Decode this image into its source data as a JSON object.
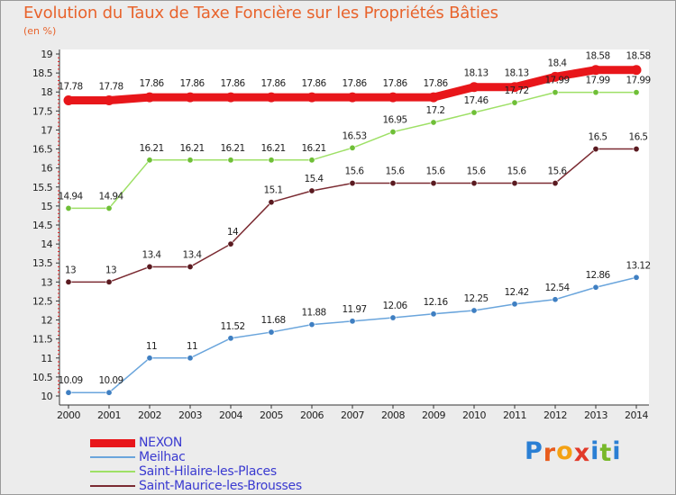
{
  "title": "Evolution du Taux de Taxe Foncière sur les Propriétés Bâties",
  "subtitle": "(en %)",
  "logo": "Proxiti",
  "chart_data": {
    "type": "line",
    "title": "Evolution du Taux de Taxe Foncière sur les Propriétés Bâties",
    "ylabel": "(en %)",
    "xlabel": "",
    "ylim": [
      10,
      19
    ],
    "yticks": [
      "10",
      "10.5",
      "11",
      "11.5",
      "12",
      "12.5",
      "13",
      "13.5",
      "14",
      "14.5",
      "15",
      "15.5",
      "16",
      "16.5",
      "17",
      "17.5",
      "18",
      "18.5",
      "19"
    ],
    "categories": [
      "2000",
      "2001",
      "2002",
      "2003",
      "2004",
      "2005",
      "2006",
      "2007",
      "2008",
      "2009",
      "2010",
      "2011",
      "2012",
      "2013",
      "2014"
    ],
    "grid": false,
    "legend": "bottom-left",
    "series": [
      {
        "name": "NEXON",
        "color": "#e8161a",
        "marker_color": "#c01010",
        "values": [
          17.78,
          17.78,
          17.86,
          17.86,
          17.86,
          17.86,
          17.86,
          17.86,
          17.86,
          17.86,
          18.13,
          18.13,
          18.4,
          18.58,
          18.58
        ],
        "labels": [
          "17.78",
          "17.78",
          "17.86",
          "17.86",
          "17.86",
          "17.86",
          "17.86",
          "17.86",
          "17.86",
          "17.86",
          "18.13",
          "18.13",
          "18.4",
          "18.58",
          "18.58"
        ]
      },
      {
        "name": "Meilhac",
        "color": "#6aa5dc",
        "marker_color": "#3f7fc2",
        "values": [
          10.09,
          10.09,
          11,
          11,
          11.52,
          11.68,
          11.88,
          11.97,
          12.06,
          12.16,
          12.25,
          12.42,
          12.54,
          12.86,
          13.12
        ],
        "labels": [
          "10.09",
          "10.09",
          "11",
          "11",
          "11.52",
          "11.68",
          "11.88",
          "11.97",
          "12.06",
          "12.16",
          "12.25",
          "12.42",
          "12.54",
          "12.86",
          "13.12"
        ]
      },
      {
        "name": "Saint-Hilaire-les-Places",
        "color": "#9ee066",
        "marker_color": "#6fbf37",
        "values": [
          14.94,
          14.94,
          16.21,
          16.21,
          16.21,
          16.21,
          16.21,
          16.53,
          16.95,
          17.2,
          17.46,
          17.72,
          17.99,
          17.99,
          17.99
        ],
        "labels": [
          "14.94",
          "14.94",
          "16.21",
          "16.21",
          "16.21",
          "16.21",
          "16.21",
          "16.53",
          "16.95",
          "17.2",
          "17.46",
          "17.72",
          "17.99",
          "17.99",
          "17.99"
        ]
      },
      {
        "name": "Saint-Maurice-les-Brousses",
        "color": "#7b2b32",
        "marker_color": "#5a1a20",
        "values": [
          13,
          13,
          13.4,
          13.4,
          14,
          15.1,
          15.4,
          15.6,
          15.6,
          15.6,
          15.6,
          15.6,
          15.6,
          16.5,
          16.5
        ],
        "labels": [
          "13",
          "13",
          "13.4",
          "13.4",
          "14",
          "15.1",
          "15.4",
          "15.6",
          "15.6",
          "15.6",
          "15.6",
          "15.6",
          "15.6",
          "16.5",
          "16.5"
        ]
      }
    ]
  }
}
